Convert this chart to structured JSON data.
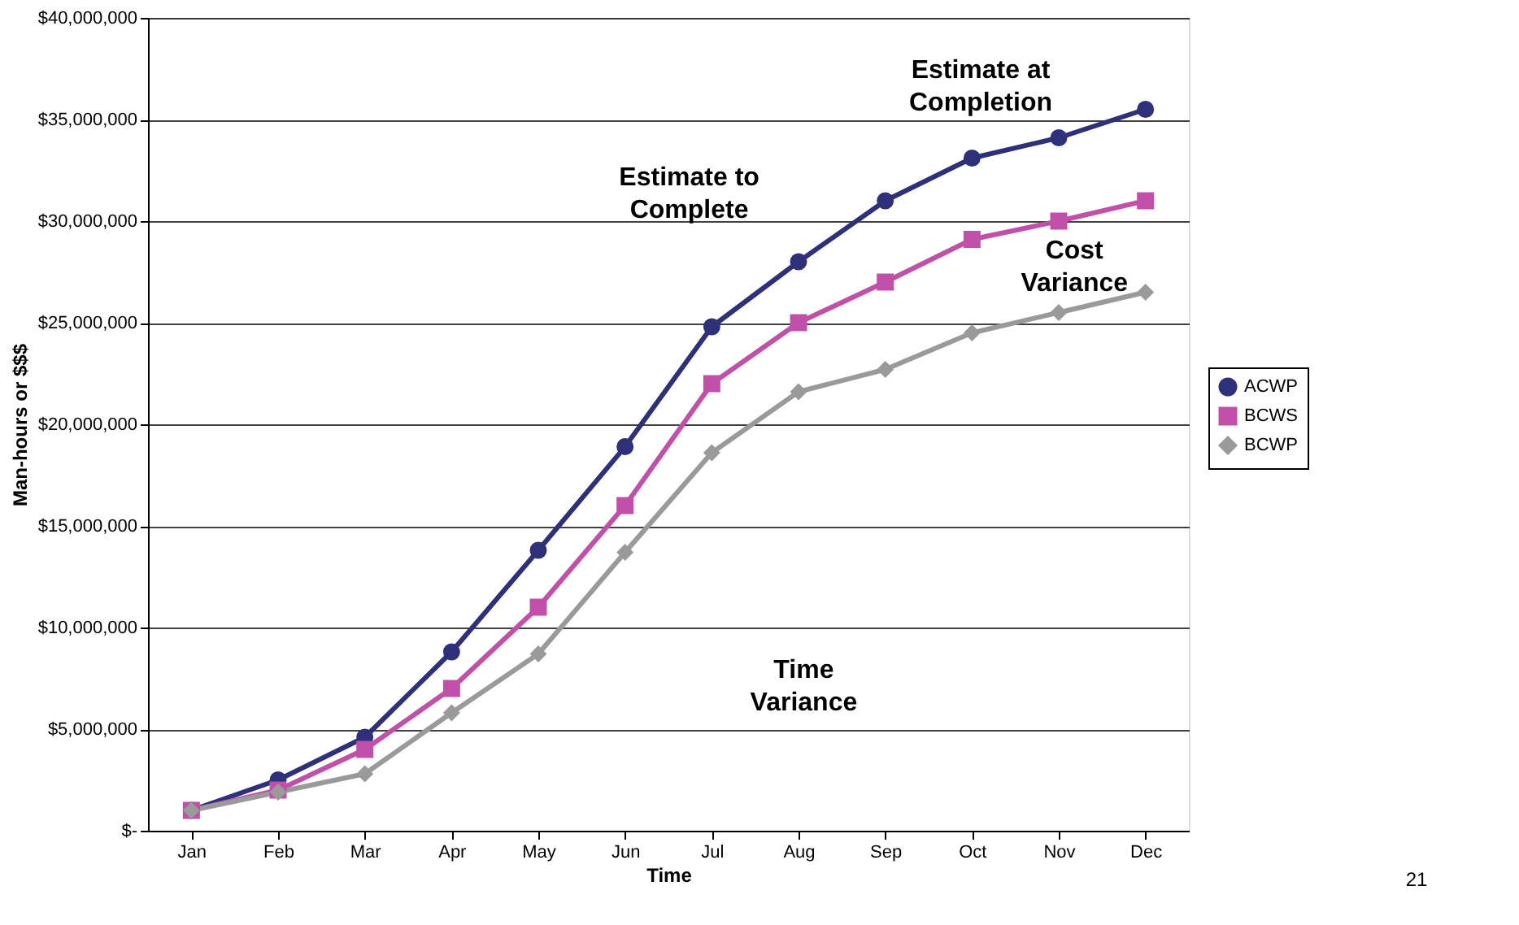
{
  "chart_data": {
    "type": "line",
    "categories": [
      "Jan",
      "Feb",
      "Mar",
      "Apr",
      "May",
      "Jun",
      "Jul",
      "Aug",
      "Sep",
      "Oct",
      "Nov",
      "Dec"
    ],
    "series": [
      {
        "name": "ACWP",
        "color": "#2e3179",
        "marker": "circle",
        "values": [
          1000000,
          2500000,
          4600000,
          8800000,
          13800000,
          18900000,
          24800000,
          28000000,
          31000000,
          33100000,
          34100000,
          35500000
        ]
      },
      {
        "name": "BCWS",
        "color": "#c050a8",
        "marker": "square",
        "values": [
          1000000,
          2000000,
          4000000,
          7000000,
          11000000,
          16000000,
          22000000,
          25000000,
          27000000,
          29100000,
          30000000,
          31000000
        ]
      },
      {
        "name": "BCWP",
        "color": "#9a9a9a",
        "marker": "diamond",
        "values": [
          1000000,
          1900000,
          2800000,
          5800000,
          8700000,
          13700000,
          18600000,
          21600000,
          22700000,
          24500000,
          25500000,
          26500000
        ]
      }
    ],
    "xlabel": "Time",
    "ylabel": "Man-hours or $$$",
    "ylim": [
      0,
      40000000
    ],
    "yticks": [
      {
        "value": 0,
        "label": "$-"
      },
      {
        "value": 5000000,
        "label": "$5,000,000"
      },
      {
        "value": 10000000,
        "label": "$10,000,000"
      },
      {
        "value": 15000000,
        "label": "$15,000,000"
      },
      {
        "value": 20000000,
        "label": "$20,000,000"
      },
      {
        "value": 25000000,
        "label": "$25,000,000"
      },
      {
        "value": 30000000,
        "label": "$30,000,000"
      },
      {
        "value": 35000000,
        "label": "$35,000,000"
      },
      {
        "value": 40000000,
        "label": "$40,000,000"
      }
    ],
    "grid": "y",
    "legend": "right",
    "annotations": [
      "Estimate at Completion",
      "Estimate to Complete",
      "Cost Variance",
      "Time Variance",
      "21"
    ]
  }
}
